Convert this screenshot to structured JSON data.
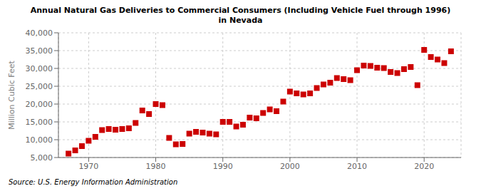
{
  "chart_data": {
    "type": "scatter",
    "title": "Annual Natural Gas Deliveries to Commercial Consumers (Including Vehicle Fuel through 1996)\nin Nevada",
    "ylabel": "Million Cubic Feet",
    "annotations": [
      "Source: U.S. Energy Information Administration"
    ],
    "color": "#cc0000",
    "marker": "square",
    "grid": true,
    "xlim": [
      1965.5,
      2025.5
    ],
    "xticks": [
      1970,
      1980,
      1990,
      2000,
      2010,
      2020
    ],
    "ylim": [
      5000,
      40000
    ],
    "yticks": [
      {
        "value": 5000,
        "label": "5,000"
      },
      {
        "value": 10000,
        "label": "10,000"
      },
      {
        "value": 15000,
        "label": "15,000"
      },
      {
        "value": 20000,
        "label": "20,000"
      },
      {
        "value": 25000,
        "label": "25,000"
      },
      {
        "value": 30000,
        "label": "30,000"
      },
      {
        "value": 35000,
        "label": "35,000"
      },
      {
        "value": 40000,
        "label": "40,000"
      }
    ],
    "x": [
      1967,
      1968,
      1969,
      1970,
      1971,
      1972,
      1973,
      1974,
      1975,
      1976,
      1977,
      1978,
      1979,
      1980,
      1981,
      1982,
      1983,
      1984,
      1985,
      1986,
      1987,
      1988,
      1989,
      1990,
      1991,
      1992,
      1993,
      1994,
      1995,
      1996,
      1997,
      1998,
      1999,
      2000,
      2001,
      2002,
      2003,
      2004,
      2005,
      2006,
      2007,
      2008,
      2009,
      2010,
      2011,
      2012,
      2013,
      2014,
      2015,
      2016,
      2017,
      2018,
      2019,
      2020,
      2021,
      2022,
      2023,
      2024
    ],
    "values": [
      6100,
      7000,
      8200,
      9700,
      10800,
      12700,
      13000,
      12800,
      13000,
      13200,
      14700,
      18200,
      17200,
      20000,
      19700,
      10500,
      8700,
      8800,
      11700,
      12200,
      12000,
      11700,
      11500,
      15000,
      15000,
      13700,
      14200,
      16200,
      16000,
      17500,
      18500,
      18000,
      20700,
      23500,
      23000,
      22700,
      23000,
      24500,
      25500,
      26000,
      27300,
      27000,
      26700,
      29500,
      30800,
      30700,
      30200,
      30100,
      29000,
      28700,
      29800,
      30400,
      25300,
      35200,
      33200,
      32500,
      31500,
      34800
    ]
  }
}
